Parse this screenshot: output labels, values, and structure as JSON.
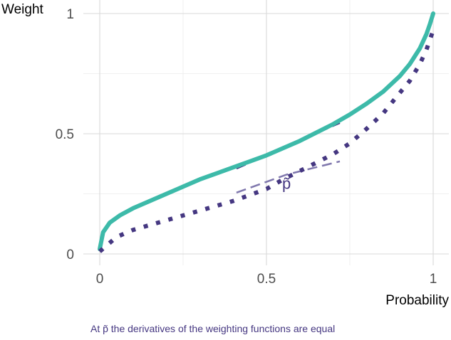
{
  "chart_data": {
    "type": "line",
    "xlabel": "Probability",
    "ylabel": "Weight",
    "xlim": [
      0,
      1
    ],
    "ylim": [
      0,
      1
    ],
    "x_ticks": [
      {
        "value": 0,
        "label": "0"
      },
      {
        "value": 0.5,
        "label": "0.5"
      },
      {
        "value": 1,
        "label": "1"
      }
    ],
    "y_ticks": [
      {
        "value": 0,
        "label": "0"
      },
      {
        "value": 0.5,
        "label": "0.5"
      },
      {
        "value": 1,
        "label": "1"
      }
    ],
    "grid": true,
    "series": [
      {
        "style": "solid",
        "color": "#3dbaa9",
        "x": [
          0,
          0.01,
          0.03,
          0.06,
          0.1,
          0.15,
          0.2,
          0.25,
          0.3,
          0.35,
          0.4,
          0.45,
          0.5,
          0.55,
          0.6,
          0.65,
          0.7,
          0.75,
          0.8,
          0.85,
          0.9,
          0.93,
          0.96,
          0.98,
          0.99,
          1.0
        ],
        "y": [
          0.02,
          0.09,
          0.13,
          0.16,
          0.19,
          0.22,
          0.25,
          0.28,
          0.31,
          0.335,
          0.36,
          0.385,
          0.41,
          0.44,
          0.47,
          0.505,
          0.54,
          0.58,
          0.625,
          0.675,
          0.74,
          0.79,
          0.855,
          0.915,
          0.955,
          1.0
        ]
      },
      {
        "style": "dotted",
        "color": "#453781",
        "x": [
          0,
          0.05,
          0.1,
          0.15,
          0.2,
          0.25,
          0.3,
          0.35,
          0.4,
          0.45,
          0.5,
          0.55,
          0.6,
          0.65,
          0.7,
          0.75,
          0.8,
          0.85,
          0.9,
          0.93,
          0.96,
          0.98,
          1.0
        ],
        "y": [
          0.01,
          0.07,
          0.1,
          0.12,
          0.14,
          0.16,
          0.18,
          0.2,
          0.22,
          0.245,
          0.27,
          0.31,
          0.345,
          0.38,
          0.415,
          0.46,
          0.52,
          0.585,
          0.67,
          0.72,
          0.79,
          0.85,
          0.93
        ]
      },
      {
        "style": "dashed",
        "color": "#453781",
        "x": [
          0.41,
          0.72
        ],
        "y": [
          0.355,
          0.545
        ]
      },
      {
        "style": "dashed",
        "color": "#7f77ad",
        "x": [
          0.41,
          0.56,
          0.72
        ],
        "y": [
          0.255,
          0.33,
          0.385
        ]
      }
    ],
    "annotation": {
      "text": "p̃",
      "x": 0.56,
      "y": 0.27,
      "color": "#453781"
    }
  },
  "caption": {
    "text": "At p̃ the derivatives of the weighting functions are equal",
    "color": "#453781"
  }
}
